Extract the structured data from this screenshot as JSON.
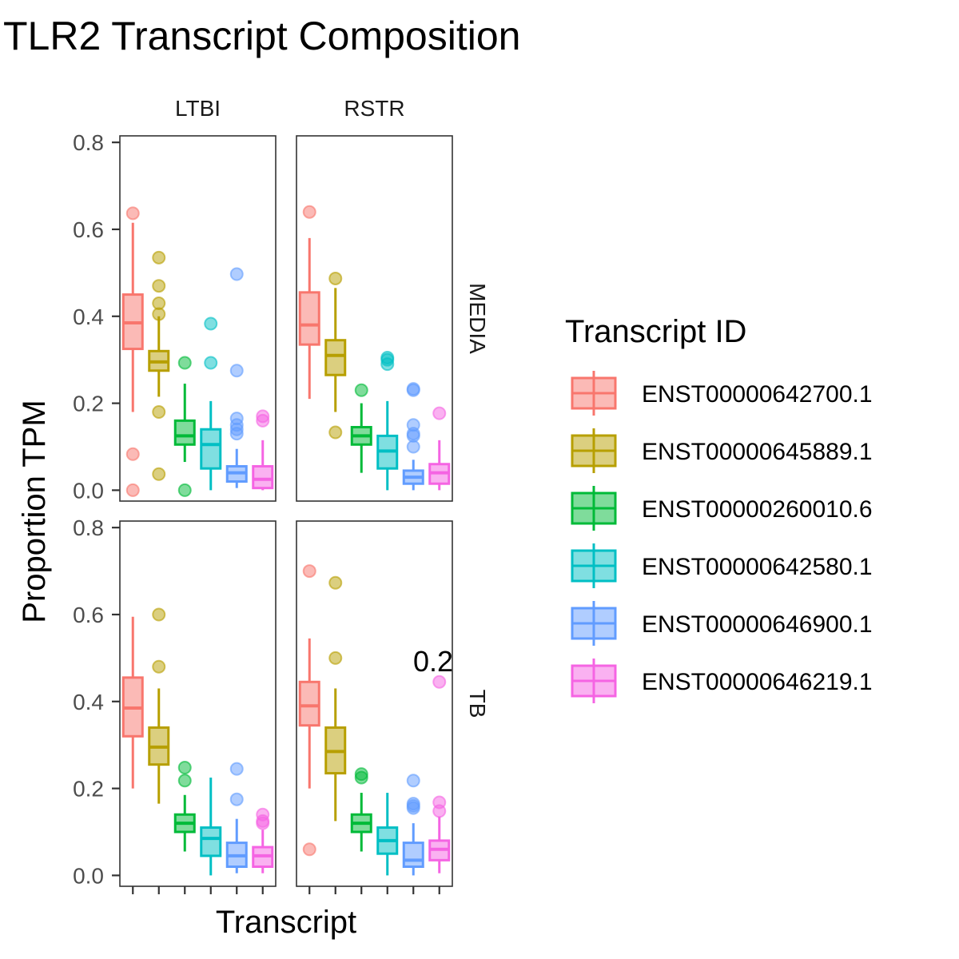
{
  "chart_data": {
    "type": "boxplot",
    "title": "TLR2 Transcript Composition",
    "xlabel": "Transcript",
    "ylabel": "Proportion TPM",
    "ylim": [
      -0.025,
      0.815
    ],
    "yticks": [
      0.0,
      0.2,
      0.4,
      0.6,
      0.8
    ],
    "ytick_labels": [
      "0.0",
      "0.2",
      "0.4",
      "0.6",
      "0.8"
    ],
    "grid": false,
    "legend_title": "Transcript ID",
    "legend_position": "right",
    "col_facets": [
      "LTBI",
      "RSTR"
    ],
    "row_facets": [
      "MEDIA",
      "TB"
    ],
    "series": [
      {
        "name": "ENST00000642700.1",
        "color": "#F8766D"
      },
      {
        "name": "ENST00000645889.1",
        "color": "#B79F00"
      },
      {
        "name": "ENST00000260010.6",
        "color": "#00BA38"
      },
      {
        "name": "ENST00000642580.1",
        "color": "#00BFC4"
      },
      {
        "name": "ENST00000646900.1",
        "color": "#619CFF"
      },
      {
        "name": "ENST00000646219.1",
        "color": "#F564E3"
      }
    ],
    "panels": [
      {
        "row": "MEDIA",
        "col": "LTBI",
        "boxes": [
          {
            "min": 0.18,
            "q1": 0.325,
            "median": 0.385,
            "q3": 0.45,
            "max": 0.615,
            "outliers": [
              0.637,
              0.083,
              0.0
            ]
          },
          {
            "min": 0.215,
            "q1": 0.275,
            "median": 0.295,
            "q3": 0.32,
            "max": 0.4,
            "outliers": [
              0.535,
              0.47,
              0.43,
              0.405,
              0.18,
              0.037
            ]
          },
          {
            "min": 0.065,
            "q1": 0.105,
            "median": 0.125,
            "q3": 0.16,
            "max": 0.245,
            "outliers": [
              0.293,
              0.0
            ]
          },
          {
            "min": 0.0,
            "q1": 0.05,
            "median": 0.105,
            "q3": 0.14,
            "max": 0.205,
            "outliers": [
              0.383,
              0.293
            ]
          },
          {
            "min": 0.005,
            "q1": 0.02,
            "median": 0.04,
            "q3": 0.055,
            "max": 0.095,
            "outliers": [
              0.497,
              0.275,
              0.165,
              0.15,
              0.14,
              0.13
            ]
          },
          {
            "min": 0.0,
            "q1": 0.005,
            "median": 0.025,
            "q3": 0.055,
            "max": 0.115,
            "outliers": [
              0.17,
              0.16
            ]
          }
        ]
      },
      {
        "row": "MEDIA",
        "col": "RSTR",
        "boxes": [
          {
            "min": 0.21,
            "q1": 0.335,
            "median": 0.38,
            "q3": 0.455,
            "max": 0.58,
            "outliers": [
              0.64
            ]
          },
          {
            "min": 0.18,
            "q1": 0.265,
            "median": 0.31,
            "q3": 0.345,
            "max": 0.465,
            "outliers": [
              0.487,
              0.133
            ]
          },
          {
            "min": 0.04,
            "q1": 0.105,
            "median": 0.125,
            "q3": 0.145,
            "max": 0.2,
            "outliers": [
              0.23
            ]
          },
          {
            "min": 0.0,
            "q1": 0.05,
            "median": 0.09,
            "q3": 0.125,
            "max": 0.205,
            "outliers": [
              0.305,
              0.3,
              0.29
            ]
          },
          {
            "min": 0.0,
            "q1": 0.015,
            "median": 0.03,
            "q3": 0.045,
            "max": 0.07,
            "outliers": [
              0.233,
              0.23,
              0.15,
              0.13,
              0.125,
              0.1
            ]
          },
          {
            "min": 0.0,
            "q1": 0.015,
            "median": 0.04,
            "q3": 0.06,
            "max": 0.115,
            "outliers": [
              0.177
            ]
          }
        ]
      },
      {
        "row": "TB",
        "col": "LTBI",
        "boxes": [
          {
            "min": 0.2,
            "q1": 0.32,
            "median": 0.385,
            "q3": 0.455,
            "max": 0.595,
            "outliers": []
          },
          {
            "min": 0.165,
            "q1": 0.255,
            "median": 0.295,
            "q3": 0.34,
            "max": 0.43,
            "outliers": [
              0.6,
              0.48
            ]
          },
          {
            "min": 0.055,
            "q1": 0.1,
            "median": 0.12,
            "q3": 0.14,
            "max": 0.185,
            "outliers": [
              0.248,
              0.218
            ]
          },
          {
            "min": 0.0,
            "q1": 0.045,
            "median": 0.085,
            "q3": 0.11,
            "max": 0.225,
            "outliers": []
          },
          {
            "min": 0.005,
            "q1": 0.02,
            "median": 0.045,
            "q3": 0.075,
            "max": 0.13,
            "outliers": [
              0.245,
              0.175
            ]
          },
          {
            "min": 0.005,
            "q1": 0.02,
            "median": 0.045,
            "q3": 0.065,
            "max": 0.105,
            "outliers": [
              0.14,
              0.125,
              0.12
            ]
          }
        ]
      },
      {
        "row": "TB",
        "col": "RSTR",
        "boxes": [
          {
            "min": 0.2,
            "q1": 0.345,
            "median": 0.39,
            "q3": 0.445,
            "max": 0.545,
            "outliers": [
              0.7,
              0.06
            ]
          },
          {
            "min": 0.125,
            "q1": 0.235,
            "median": 0.285,
            "q3": 0.34,
            "max": 0.43,
            "outliers": [
              0.673,
              0.5
            ]
          },
          {
            "min": 0.055,
            "q1": 0.1,
            "median": 0.12,
            "q3": 0.14,
            "max": 0.19,
            "outliers": [
              0.233,
              0.225
            ]
          },
          {
            "min": 0.0,
            "q1": 0.05,
            "median": 0.08,
            "q3": 0.11,
            "max": 0.19,
            "outliers": []
          },
          {
            "min": 0.0,
            "q1": 0.02,
            "median": 0.035,
            "q3": 0.075,
            "max": 0.12,
            "outliers": [
              0.218,
              0.165,
              0.16,
              0.155
            ]
          },
          {
            "min": 0.005,
            "q1": 0.035,
            "median": 0.06,
            "q3": 0.08,
            "max": 0.135,
            "outliers": [
              0.445,
              0.168,
              0.148
            ]
          }
        ]
      }
    ],
    "annotation": {
      "text": "0.2",
      "row": "TB",
      "col": "RSTR"
    }
  }
}
